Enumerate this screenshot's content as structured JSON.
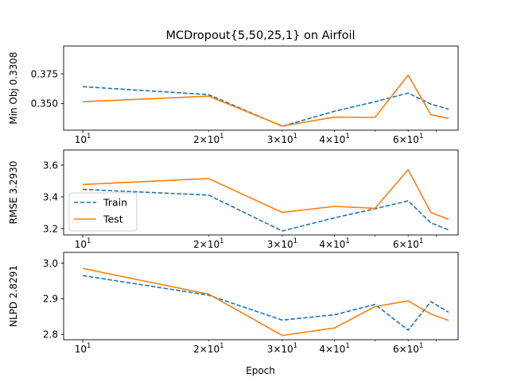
{
  "chart_data": {
    "type": "line",
    "title": "MCDropout{5,50,25,1} on Airfoil",
    "xlabel": "Epoch",
    "xscale": "log",
    "xlim": [
      9.0,
      79.0
    ],
    "x": [
      10,
      20,
      30,
      40,
      50,
      60,
      68,
      75
    ],
    "x_major_ticks": [
      10
    ],
    "x_major_tick_labels": [
      "10",
      "1"
    ],
    "x_minor_ticks": [
      20,
      30,
      40,
      60
    ],
    "x_minor_tick_labels": [
      [
        "2",
        "10",
        "1"
      ],
      [
        "3",
        "10",
        "1"
      ],
      [
        "4",
        "10",
        "1"
      ],
      [
        "6",
        "10",
        "1"
      ]
    ],
    "x_minor_ticks_unlabeled": [
      50,
      70
    ],
    "tick_mult": "×",
    "colors": {
      "Train": "#1f77b4",
      "Test": "#ff7f0e"
    },
    "subplots": [
      {
        "ylabel": "Min Obj 0.3308",
        "ylim": [
          0.3275,
          0.3985
        ],
        "yticks": [
          0.35,
          0.375
        ],
        "ytick_labels": [
          "0.350",
          "0.375"
        ],
        "legend": false,
        "series": [
          {
            "name": "Train",
            "style": "dashed",
            "values": [
              0.3642,
              0.3575,
              0.3308,
              0.3435,
              0.3515,
              0.3588,
              0.3495,
              0.3452
            ]
          },
          {
            "name": "Test",
            "style": "solid",
            "values": [
              0.3515,
              0.3562,
              0.331,
              0.3385,
              0.3383,
              0.374,
              0.3405,
              0.3375
            ]
          }
        ]
      },
      {
        "ylabel": "RMSE 3.2930",
        "ylim": [
          3.16,
          3.695
        ],
        "yticks": [
          3.2,
          3.4,
          3.6
        ],
        "ytick_labels": [
          "3.2",
          "3.4",
          "3.6"
        ],
        "legend": true,
        "legend_position": "center-left",
        "series": [
          {
            "name": "Train",
            "style": "dashed",
            "values": [
              3.447,
              3.411,
              3.185,
              3.268,
              3.325,
              3.375,
              3.236,
              3.192
            ]
          },
          {
            "name": "Test",
            "style": "solid",
            "values": [
              3.478,
              3.515,
              3.302,
              3.34,
              3.328,
              3.571,
              3.302,
              3.258
            ]
          }
        ]
      },
      {
        "ylabel": "NLPD 2.8291",
        "ylim": [
          2.785,
          3.03
        ],
        "yticks": [
          2.8,
          2.9,
          3.0
        ],
        "ytick_labels": [
          "2.8",
          "2.9",
          "3.0"
        ],
        "legend": false,
        "series": [
          {
            "name": "Train",
            "style": "dashed",
            "values": [
              2.965,
              2.91,
              2.84,
              2.855,
              2.884,
              2.812,
              2.892,
              2.862
            ]
          },
          {
            "name": "Test",
            "style": "solid",
            "values": [
              2.985,
              2.913,
              2.797,
              2.818,
              2.878,
              2.894,
              2.857,
              2.839
            ]
          }
        ]
      }
    ]
  }
}
